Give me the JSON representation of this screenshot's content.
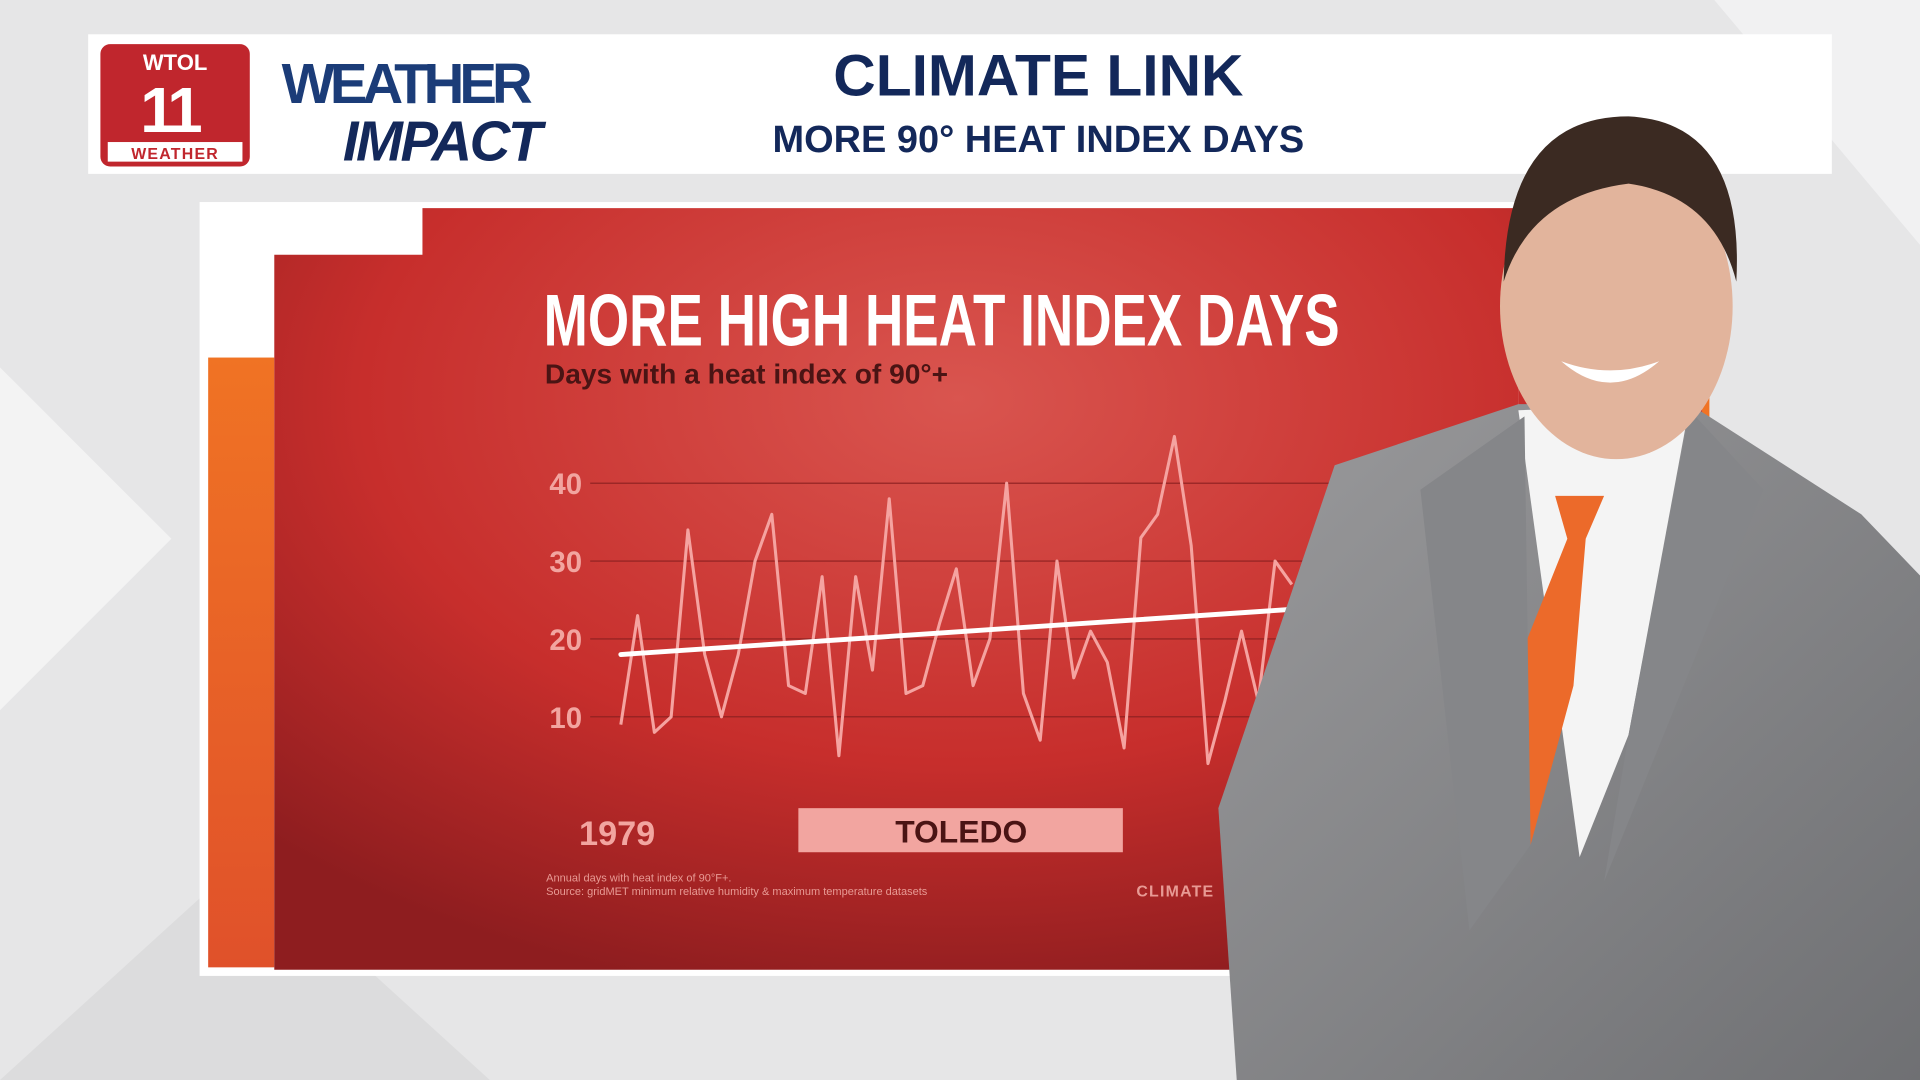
{
  "branding": {
    "station": "WTOL",
    "channel": "11",
    "tag": "WEATHER",
    "show_top": "WEATHER",
    "show_bottom": "IMPACT"
  },
  "header": {
    "title": "CLIMATE LINK",
    "subtitle": "MORE 90° HEAT INDEX DAYS"
  },
  "chart_data": {
    "type": "line",
    "title": "MORE HIGH HEAT INDEX DAYS",
    "subtitle": "Days with a heat index of 90°+",
    "location": "TOLEDO",
    "notes": [
      "Annual days with heat index of 90°F+.",
      "Source: gridMET minimum relative humidity & maximum temperature datasets"
    ],
    "source_logo": "CLIMATE",
    "categories": [
      "1979",
      null,
      null,
      null,
      null,
      null,
      null,
      null,
      null,
      null,
      null,
      null,
      null,
      null,
      null,
      null,
      null,
      null,
      null,
      null,
      null,
      null,
      null,
      null,
      null,
      null,
      null,
      null,
      null,
      null,
      null,
      null,
      null,
      null,
      null,
      null,
      null,
      null,
      null,
      null,
      null
    ],
    "values": [
      9,
      23,
      8,
      10,
      34,
      18,
      10,
      18,
      30,
      36,
      14,
      13,
      28,
      5,
      28,
      16,
      38,
      13,
      14,
      22,
      29,
      14,
      20,
      40,
      13,
      7,
      30,
      15,
      21,
      17,
      6,
      33,
      36,
      46,
      32,
      4,
      12,
      21,
      12,
      30,
      27
    ],
    "trend": [
      18,
      23.8
    ],
    "color": "#f5a3a0",
    "trend_color": "#ffffff",
    "ylim": [
      0,
      50
    ],
    "yticks": [
      10,
      20,
      30,
      40
    ],
    "grid": true
  }
}
